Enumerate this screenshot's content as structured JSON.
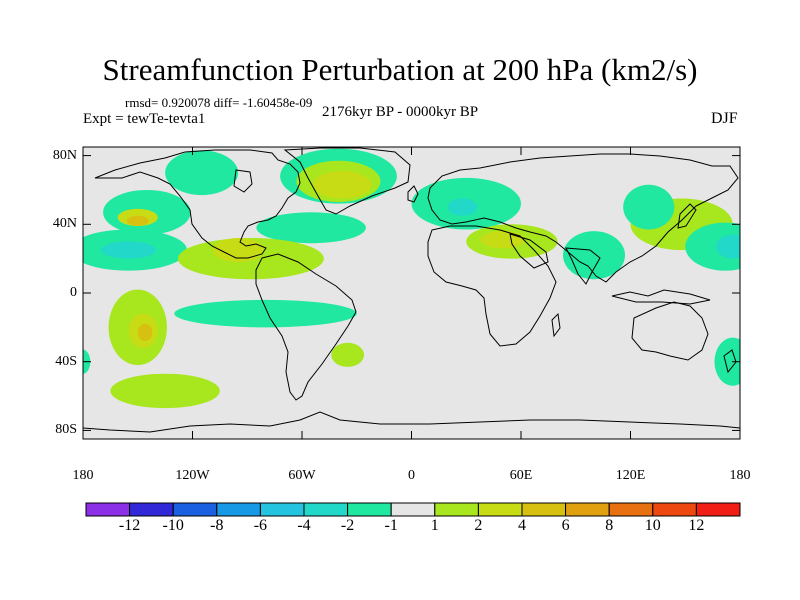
{
  "title": "Streamfunction Perturbation at 200 hPa (km2/s)",
  "stats": "rmsd= 0.920078 diff= -1.60458e-09",
  "experiment": "Expt = tewTe-tevta1",
  "period": "2176kyr BP - 0000kyr BP",
  "season": "DJF",
  "y_axis": {
    "ticks": [
      {
        "value": 80,
        "label": "80N"
      },
      {
        "value": 40,
        "label": "40N"
      },
      {
        "value": 0,
        "label": "0"
      },
      {
        "value": -40,
        "label": "40S"
      },
      {
        "value": -80,
        "label": "80S"
      }
    ]
  },
  "x_axis": {
    "ticks": [
      {
        "value": -180,
        "label": "180"
      },
      {
        "value": -120,
        "label": "120W"
      },
      {
        "value": -60,
        "label": "60W"
      },
      {
        "value": 0,
        "label": "0"
      },
      {
        "value": 60,
        "label": "60E"
      },
      {
        "value": 120,
        "label": "120E"
      },
      {
        "value": 180,
        "label": "180"
      }
    ]
  },
  "colorbar": {
    "colors": [
      "#8c30e8",
      "#3228d8",
      "#1a60e0",
      "#1899e6",
      "#24c4e0",
      "#22d8c8",
      "#20e8a0",
      "#e6e6e6",
      "#a8e61e",
      "#c8dc16",
      "#d8c010",
      "#e0a010",
      "#e87010",
      "#ec4810",
      "#f01e14"
    ],
    "labels": [
      "-12",
      "-10",
      "-8",
      "-6",
      "-4",
      "-2",
      "-1",
      "1",
      "2",
      "4",
      "6",
      "8",
      "10",
      "12"
    ]
  },
  "map": {
    "background": "#e6e6e6",
    "blobs": [
      {
        "lon": -145,
        "lat": 47,
        "rlon": 24,
        "rlat": 13,
        "color": "#20e8a0"
      },
      {
        "lon": -150,
        "lat": 44,
        "rlon": 11,
        "rlat": 5,
        "color": "#c8dc16"
      },
      {
        "lon": -150,
        "lat": 42,
        "rlon": 6,
        "rlat": 3,
        "color": "#d8c010"
      },
      {
        "lon": -115,
        "lat": 70,
        "rlon": 20,
        "rlat": 13,
        "color": "#20e8a0"
      },
      {
        "lon": -155,
        "lat": 25,
        "rlon": 32,
        "rlat": 12,
        "color": "#20e8a0"
      },
      {
        "lon": -155,
        "lat": 25,
        "rlon": 15,
        "rlat": 5,
        "color": "#22d8c8"
      },
      {
        "lon": -40,
        "lat": 68,
        "rlon": 32,
        "rlat": 16,
        "color": "#20e8a0"
      },
      {
        "lon": -40,
        "lat": 65,
        "rlon": 23,
        "rlat": 12,
        "color": "#a8e61e"
      },
      {
        "lon": -38,
        "lat": 63,
        "rlon": 16,
        "rlat": 8,
        "color": "#c8dc16"
      },
      {
        "lon": -55,
        "lat": 38,
        "rlon": 30,
        "rlat": 9,
        "color": "#20e8a0"
      },
      {
        "lon": -88,
        "lat": 20,
        "rlon": 40,
        "rlat": 12,
        "color": "#a8e61e"
      },
      {
        "lon": -95,
        "lat": 25,
        "rlon": 14,
        "rlat": 7,
        "color": "#c8dc16"
      },
      {
        "lon": 30,
        "lat": 52,
        "rlon": 30,
        "rlat": 15,
        "color": "#20e8a0"
      },
      {
        "lon": 28,
        "lat": 50,
        "rlon": 8,
        "rlat": 5,
        "color": "#22d8c8"
      },
      {
        "lon": 55,
        "lat": 30,
        "rlon": 25,
        "rlat": 10,
        "color": "#a8e61e"
      },
      {
        "lon": 50,
        "lat": 31,
        "rlon": 12,
        "rlat": 5,
        "color": "#c8dc16"
      },
      {
        "lon": 100,
        "lat": 22,
        "rlon": 17,
        "rlat": 14,
        "color": "#20e8a0"
      },
      {
        "lon": 148,
        "lat": 40,
        "rlon": 28,
        "rlat": 15,
        "color": "#a8e61e"
      },
      {
        "lon": 130,
        "lat": 50,
        "rlon": 14,
        "rlat": 13,
        "color": "#20e8a0"
      },
      {
        "lon": 172,
        "lat": 27,
        "rlon": 22,
        "rlat": 14,
        "color": "#20e8a0"
      },
      {
        "lon": 176,
        "lat": 27,
        "rlon": 9,
        "rlat": 7,
        "color": "#22d8c8"
      },
      {
        "lon": -150,
        "lat": -20,
        "rlon": 16,
        "rlat": 22,
        "color": "#a8e61e"
      },
      {
        "lon": -147,
        "lat": -22,
        "rlon": 8,
        "rlat": 10,
        "color": "#c8dc16"
      },
      {
        "lon": -146,
        "lat": -23,
        "rlon": 4,
        "rlat": 5,
        "color": "#d8c010"
      },
      {
        "lon": -80,
        "lat": -12,
        "rlon": 50,
        "rlat": 8,
        "color": "#20e8a0"
      },
      {
        "lon": -35,
        "lat": -36,
        "rlon": 9,
        "rlat": 7,
        "color": "#a8e61e"
      },
      {
        "lon": -135,
        "lat": -57,
        "rlon": 30,
        "rlat": 10,
        "color": "#a8e61e"
      },
      {
        "lon": 176,
        "lat": -40,
        "rlon": 10,
        "rlat": 14,
        "color": "#20e8a0"
      },
      {
        "lon": -180,
        "lat": -40,
        "rlon": 4,
        "rlat": 7,
        "color": "#20e8a0"
      }
    ]
  }
}
